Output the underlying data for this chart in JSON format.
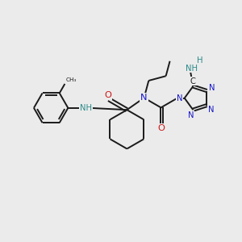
{
  "background_color": "#ebebeb",
  "bond_color": "#1a1a1a",
  "N_color": "#1414cc",
  "O_color": "#cc1414",
  "NH_color": "#2a8a8a",
  "figsize": [
    3.0,
    3.0
  ],
  "dpi": 100,
  "lw": 1.4,
  "fs": 7.2,
  "xlim": [
    0,
    10
  ],
  "ylim": [
    0,
    10
  ]
}
